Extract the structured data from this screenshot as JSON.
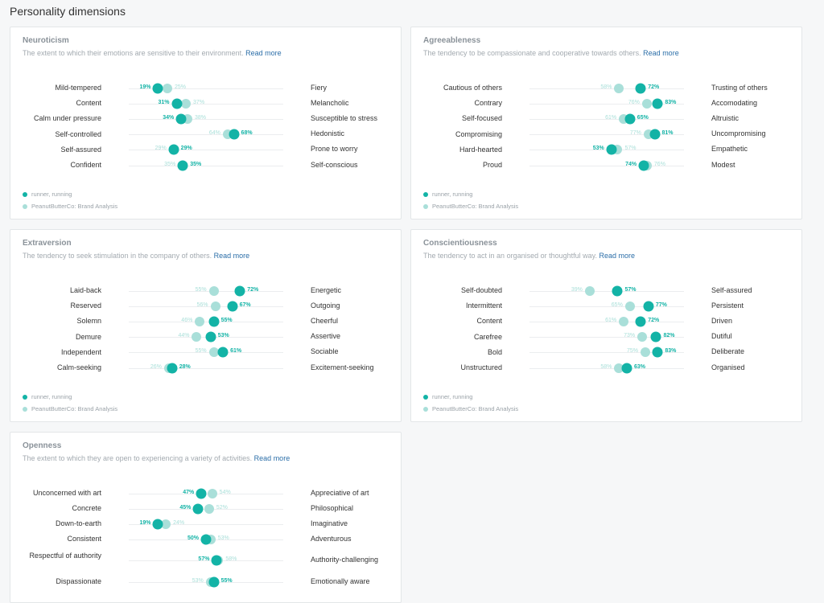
{
  "page_title": "Personality dimensions",
  "legend": {
    "primary": "runner, running",
    "secondary": "PeanutButterCo: Brand Analysis"
  },
  "colors": {
    "primary": "#13b3a6",
    "secondary": "#a9dfd9",
    "link": "#2b6ea8"
  },
  "cards": [
    {
      "title": "Neuroticism",
      "desc": "The extent to which their emotions are sensitive to their environment.",
      "read_more": "Read more",
      "traits": [
        {
          "left": "Mild-tempered",
          "right": "Fiery",
          "primary": 19,
          "secondary": 25,
          "primary_label": "19%",
          "secondary_label": "25%"
        },
        {
          "left": "Content",
          "right": "Melancholic",
          "primary": 31,
          "secondary": 37,
          "primary_label": "31%",
          "secondary_label": "37%"
        },
        {
          "left": "Calm under pressure",
          "right": "Susceptible to stress",
          "primary": 34,
          "secondary": 38,
          "primary_label": "34%",
          "secondary_label": "38%"
        },
        {
          "left": "Self-controlled",
          "right": "Hedonistic",
          "primary": 68,
          "secondary": 64,
          "primary_label": "68%",
          "secondary_label": "64%"
        },
        {
          "left": "Self-assured",
          "right": "Prone to worry",
          "primary": 29,
          "secondary": 29,
          "primary_label": "29%",
          "secondary_label": "29%"
        },
        {
          "left": "Confident",
          "right": "Self-conscious",
          "primary": 35,
          "secondary": 35,
          "primary_label": "35%",
          "secondary_label": "35%"
        }
      ]
    },
    {
      "title": "Agreeableness",
      "desc": "The tendency to be compassionate and cooperative towards others.",
      "read_more": "Read more",
      "traits": [
        {
          "left": "Cautious of others",
          "right": "Trusting of others",
          "primary": 72,
          "secondary": 58,
          "primary_label": "72%",
          "secondary_label": "58%"
        },
        {
          "left": "Contrary",
          "right": "Accomodating",
          "primary": 83,
          "secondary": 76,
          "primary_label": "83%",
          "secondary_label": "76%"
        },
        {
          "left": "Self-focused",
          "right": "Altruistic",
          "primary": 65,
          "secondary": 61,
          "primary_label": "65%",
          "secondary_label": "61%"
        },
        {
          "left": "Compromising",
          "right": "Uncompromising",
          "primary": 81,
          "secondary": 77,
          "primary_label": "81%",
          "secondary_label": "77%"
        },
        {
          "left": "Hard-hearted",
          "right": "Empathetic",
          "primary": 53,
          "secondary": 57,
          "primary_label": "53%",
          "secondary_label": "57%"
        },
        {
          "left": "Proud",
          "right": "Modest",
          "primary": 74,
          "secondary": 76,
          "primary_label": "74%",
          "secondary_label": "76%"
        }
      ]
    },
    {
      "title": "Extraversion",
      "desc": "The tendency to seek stimulation in the company of others.",
      "read_more": "Read more",
      "traits": [
        {
          "left": "Laid-back",
          "right": "Energetic",
          "primary": 72,
          "secondary": 55,
          "primary_label": "72%",
          "secondary_label": "55%"
        },
        {
          "left": "Reserved",
          "right": "Outgoing",
          "primary": 67,
          "secondary": 56,
          "primary_label": "67%",
          "secondary_label": "56%"
        },
        {
          "left": "Solemn",
          "right": "Cheerful",
          "primary": 55,
          "secondary": 46,
          "primary_label": "55%",
          "secondary_label": "46%"
        },
        {
          "left": "Demure",
          "right": "Assertive",
          "primary": 53,
          "secondary": 44,
          "primary_label": "53%",
          "secondary_label": "44%"
        },
        {
          "left": "Independent",
          "right": "Sociable",
          "primary": 61,
          "secondary": 55,
          "primary_label": "61%",
          "secondary_label": "55%"
        },
        {
          "left": "Calm-seeking",
          "right": "Excitement-seeking",
          "primary": 28,
          "secondary": 26,
          "primary_label": "28%",
          "secondary_label": "26%"
        }
      ]
    },
    {
      "title": "Conscientiousness",
      "desc": "The tendency to act in an organised or thoughtful way.",
      "read_more": "Read more",
      "traits": [
        {
          "left": "Self-doubted",
          "right": "Self-assured",
          "primary": 57,
          "secondary": 39,
          "primary_label": "57%",
          "secondary_label": "39%"
        },
        {
          "left": "Intermittent",
          "right": "Persistent",
          "primary": 77,
          "secondary": 65,
          "primary_label": "77%",
          "secondary_label": "65%"
        },
        {
          "left": "Content",
          "right": "Driven",
          "primary": 72,
          "secondary": 61,
          "primary_label": "72%",
          "secondary_label": "61%"
        },
        {
          "left": "Carefree",
          "right": "Dutiful",
          "primary": 82,
          "secondary": 73,
          "primary_label": "82%",
          "secondary_label": "73%"
        },
        {
          "left": "Bold",
          "right": "Deliberate",
          "primary": 83,
          "secondary": 75,
          "primary_label": "83%",
          "secondary_label": "75%"
        },
        {
          "left": "Unstructured",
          "right": "Organised",
          "primary": 63,
          "secondary": 58,
          "primary_label": "63%",
          "secondary_label": "58%"
        }
      ]
    },
    {
      "title": "Openness",
      "desc": "The extent to which they are open to experiencing a variety of activities.",
      "read_more": "Read more",
      "traits": [
        {
          "left": "Unconcerned with art",
          "right": "Appreciative of art",
          "primary": 47,
          "secondary": 54,
          "primary_label": "47%",
          "secondary_label": "54%"
        },
        {
          "left": "Concrete",
          "right": "Philosophical",
          "primary": 45,
          "secondary": 52,
          "primary_label": "45%",
          "secondary_label": "52%"
        },
        {
          "left": "Down-to-earth",
          "right": "Imaginative",
          "primary": 19,
          "secondary": 24,
          "primary_label": "19%",
          "secondary_label": "24%"
        },
        {
          "left": "Consistent",
          "right": "Adventurous",
          "primary": 50,
          "secondary": 53,
          "primary_label": "50%",
          "secondary_label": "53%"
        },
        {
          "left": "Respectful of authority",
          "right": "Authority-challenging",
          "primary": 57,
          "secondary": 58,
          "primary_label": "57%",
          "secondary_label": "58%"
        },
        {
          "left": "Dispassionate",
          "right": "Emotionally aware",
          "primary": 55,
          "secondary": 53,
          "primary_label": "55%",
          "secondary_label": "53%"
        }
      ]
    }
  ]
}
